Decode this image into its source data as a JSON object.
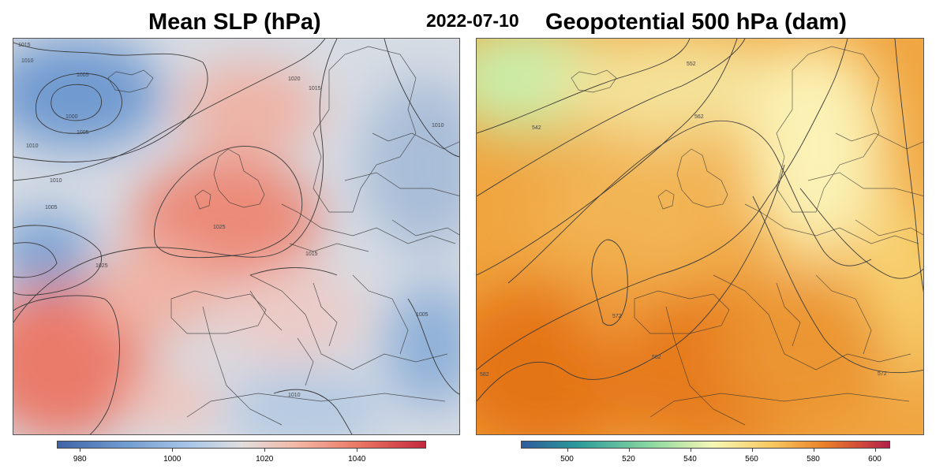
{
  "date": "2022-07-10",
  "left_map": {
    "title": "Mean SLP (hPa)",
    "contour_labels": [
      "1015",
      "1010",
      "1005",
      "1000",
      "1005",
      "1010",
      "1020",
      "1015",
      "1010",
      "1010",
      "1005",
      "1025",
      "1025",
      "1015",
      "1005",
      "1010"
    ],
    "colorbar": {
      "ticks": [
        "980",
        "1000",
        "1020",
        "1040"
      ],
      "range": [
        975,
        1055
      ]
    }
  },
  "right_map": {
    "title": "Geopotential 500 hPa (dam)",
    "contour_labels": [
      "542",
      "552",
      "562",
      "572",
      "582",
      "582",
      "572"
    ],
    "colorbar": {
      "ticks": [
        "500",
        "520",
        "540",
        "560",
        "580",
        "600"
      ],
      "range": [
        485,
        605
      ]
    }
  }
}
